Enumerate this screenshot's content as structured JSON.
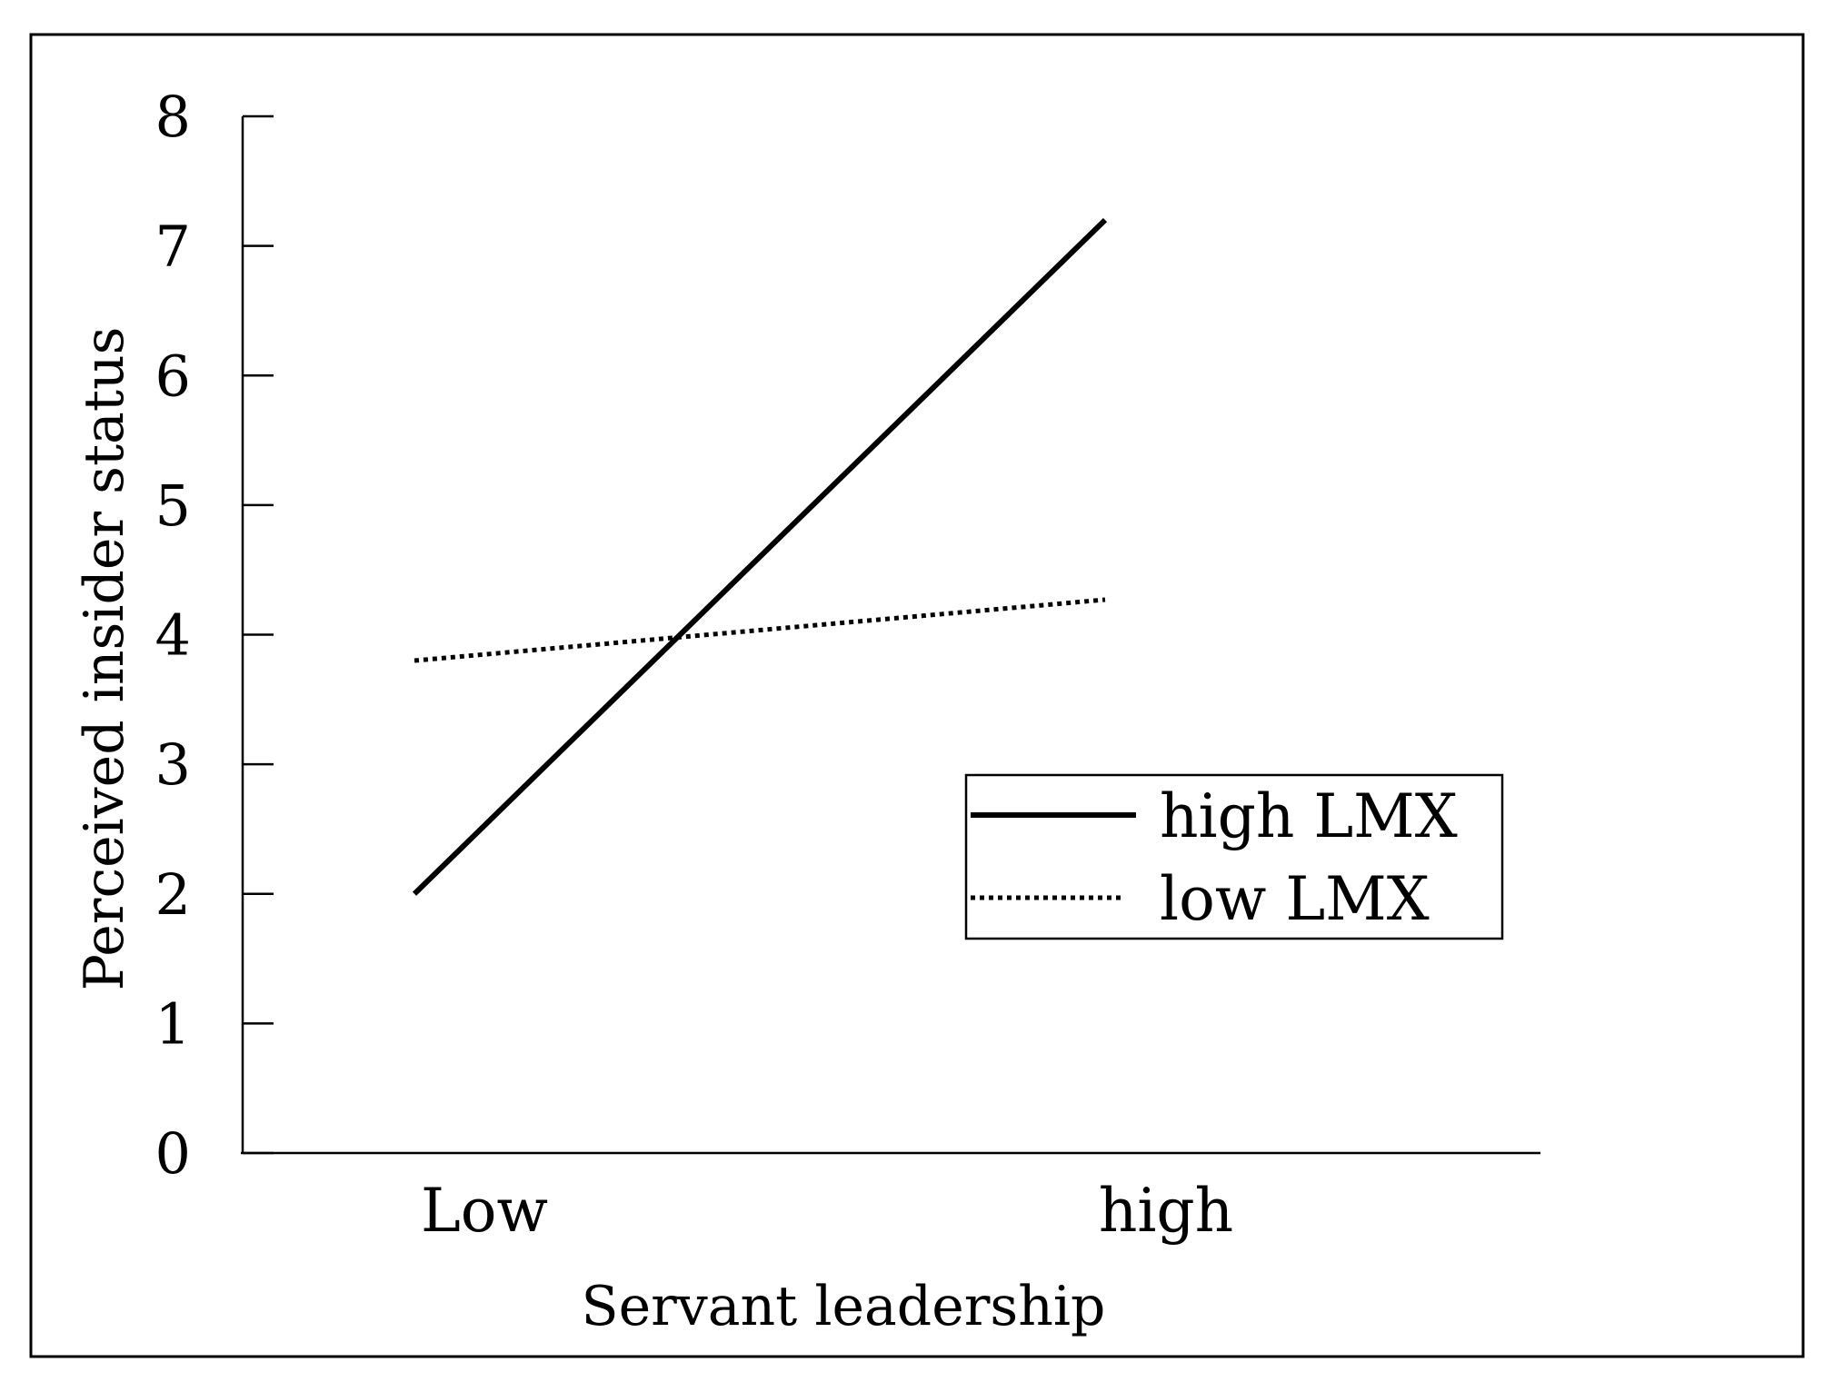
{
  "chart_data": {
    "type": "line",
    "title": "",
    "xlabel": "Servant leadership",
    "ylabel": "Perceived insider status",
    "categories": [
      "Low",
      "high"
    ],
    "ylim": [
      0,
      8
    ],
    "yticks": [
      "0",
      "1",
      "2",
      "3",
      "4",
      "5",
      "6",
      "7",
      "8"
    ],
    "grid": false,
    "legend_position": "right",
    "series": [
      {
        "name": "high LMX",
        "values": [
          2.0,
          7.2
        ],
        "style": "solid",
        "color": "#000000"
      },
      {
        "name": "low LMX",
        "values": [
          3.8,
          4.27
        ],
        "style": "dotted",
        "color": "#000000"
      }
    ]
  }
}
